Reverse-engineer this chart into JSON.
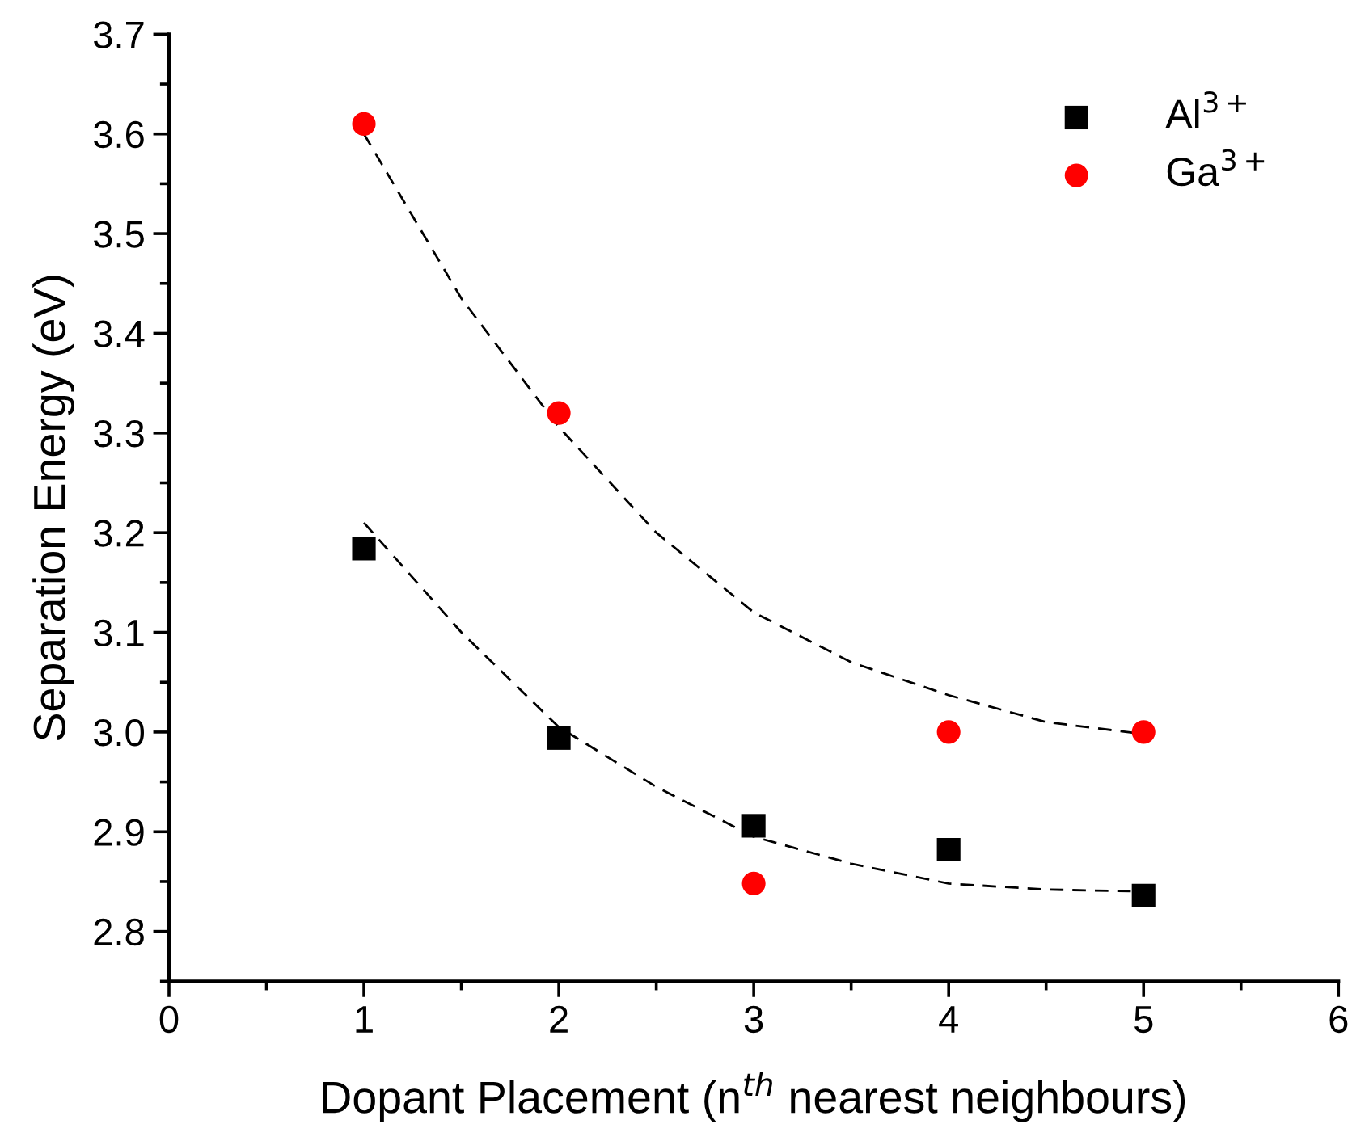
{
  "chart_data": {
    "type": "scatter",
    "xlabel": "Dopant Placement (n$^{th}$ nearest neighbours)",
    "ylabel": "Separation Energy (eV)",
    "xlim": [
      0,
      6
    ],
    "xticks": [
      0,
      1,
      2,
      3,
      4,
      5,
      6
    ],
    "ylim": [
      2.75,
      3.7
    ],
    "yticks": [
      2.8,
      2.9,
      {
        "value": 3,
        "label": "3.0"
      },
      3.1,
      3.2,
      3.3,
      3.4,
      3.5,
      3.6,
      3.7
    ],
    "legend": "top right",
    "grid": false,
    "x": [
      1,
      2,
      3,
      4,
      5
    ],
    "series": [
      {
        "name": "Al$^{3+}$",
        "color": "#000000",
        "marker": "square",
        "values": [
          3.184,
          2.994,
          2.906,
          2.882,
          2.836
        ]
      },
      {
        "name": "Ga$^{3+}$",
        "color": "#ff0000",
        "marker": "circle",
        "values": [
          3.61,
          3.32,
          2.848,
          3.0,
          3.0
        ]
      },
      {
        "type": "line",
        "color": "#000000",
        "marker": "none",
        "line_style": "dashed",
        "x": [
          1,
          1.5,
          2,
          2.5,
          3,
          3.5,
          4,
          4.5,
          5
        ],
        "values": [
          3.21,
          3.1,
          3.005,
          2.945,
          2.895,
          2.868,
          2.848,
          2.842,
          2.84
        ]
      },
      {
        "type": "line",
        "color": "#000000",
        "marker": "none",
        "line_style": "dashed",
        "x": [
          1,
          1.5,
          2,
          2.5,
          3,
          3.5,
          4,
          4.5,
          5
        ],
        "values": [
          3.6,
          3.435,
          3.306,
          3.2,
          3.12,
          3.07,
          3.037,
          3.01,
          2.998
        ]
      }
    ]
  }
}
